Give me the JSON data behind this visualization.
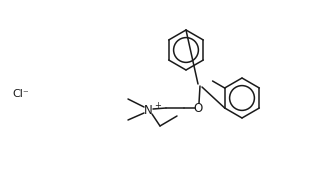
{
  "background_color": "#ffffff",
  "line_color": "#1a1a1a",
  "line_width": 1.1,
  "font_size": 7.5,
  "font_size_small": 6.0,
  "Cl_text": "Cl⁻",
  "N_text": "N",
  "O_text": "O",
  "plus_text": "+",
  "figw": 3.2,
  "figh": 1.82,
  "dpi": 100
}
